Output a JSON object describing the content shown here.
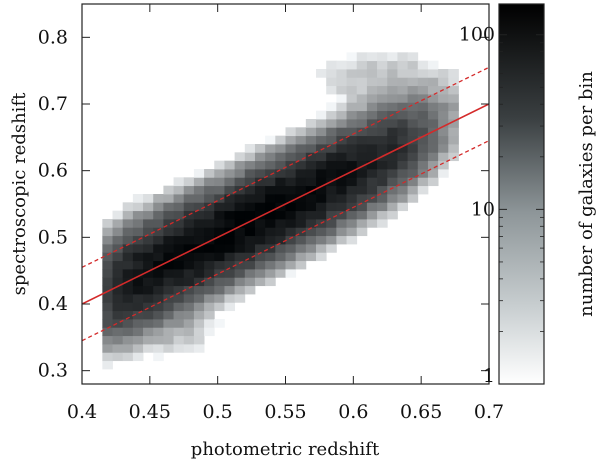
{
  "chart_data": {
    "type": "heatmap",
    "xlabel": "photometric redshift",
    "ylabel": "spectroscopic redshift",
    "colorbar_label": "number of galaxies per bin",
    "xlim": [
      0.4,
      0.7
    ],
    "ylim": [
      0.28,
      0.85
    ],
    "xticks": [
      {
        "value": 0.4,
        "label": "0.4"
      },
      {
        "value": 0.45,
        "label": "0.45"
      },
      {
        "value": 0.5,
        "label": "0.5"
      },
      {
        "value": 0.55,
        "label": "0.55"
      },
      {
        "value": 0.6,
        "label": "0.6"
      },
      {
        "value": 0.65,
        "label": "0.65"
      },
      {
        "value": 0.7,
        "label": "0.7"
      }
    ],
    "yticks": [
      {
        "value": 0.3,
        "label": "0.3"
      },
      {
        "value": 0.4,
        "label": "0.4"
      },
      {
        "value": 0.5,
        "label": "0.5"
      },
      {
        "value": 0.6,
        "label": "0.6"
      },
      {
        "value": 0.7,
        "label": "0.7"
      },
      {
        "value": 0.8,
        "label": "0.8"
      }
    ],
    "colorbar": {
      "scale": "log",
      "range": [
        1,
        150
      ],
      "ticks": [
        {
          "value": 1,
          "label": "1"
        },
        {
          "value": 10,
          "label": "10"
        },
        {
          "value": 100,
          "label": "100"
        }
      ],
      "colormap": "white-to-black (gray)"
    },
    "density_model": {
      "description": "2D histogram of galaxy counts; ridge follows y = x with scatter",
      "ridge_slope": 1.0,
      "ridge_intercept": 0.0,
      "scatter": 0.035,
      "peak_count": 150,
      "peak_center_x": 0.52,
      "core_x_range": [
        0.44,
        0.62
      ],
      "x_bin_width": 0.0075,
      "y_bin_width": 0.0125
    },
    "overlay_lines": [
      {
        "name": "one-to-one",
        "style": "solid",
        "color": "#d42a2a",
        "intercept": 0.0
      },
      {
        "name": "upper bound",
        "style": "dashed",
        "color": "#d42a2a",
        "intercept": 0.055
      },
      {
        "name": "lower bound",
        "style": "dashed",
        "color": "#d42a2a",
        "intercept": -0.055
      }
    ],
    "grid": false
  }
}
